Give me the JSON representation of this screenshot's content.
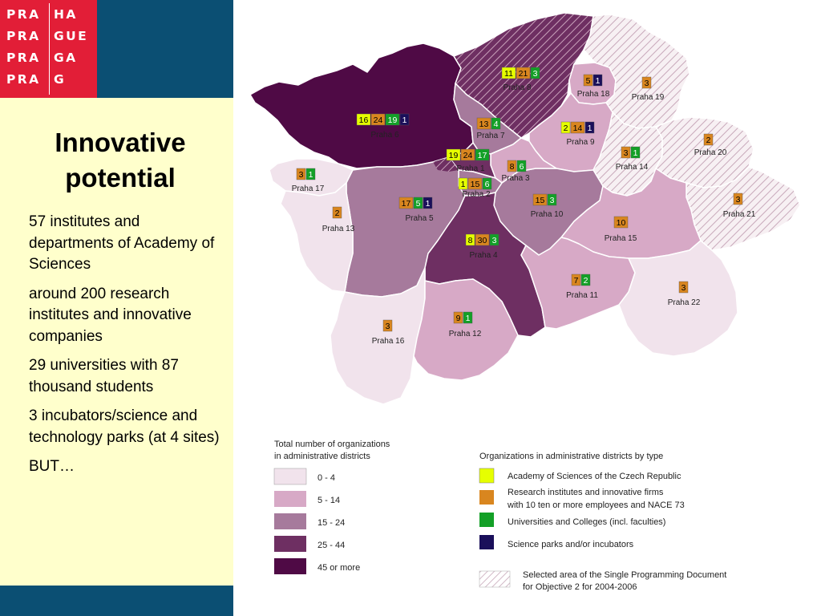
{
  "logo": {
    "lines": [
      "PRA|HA",
      "PRA|GUE",
      "PRA|GA",
      "PRA|G"
    ],
    "col1": [
      "PRA",
      "PRA",
      "PRA",
      "PRA"
    ],
    "col2": [
      "HA",
      "GUE",
      "GA",
      "G"
    ]
  },
  "sidebar": {
    "title_line1": "Innovative",
    "title_line2": "potential",
    "bullets": [
      "57 institutes and departments of Academy of Sciences",
      "around 200 research institutes and innovative companies",
      "29 universities with 87 thousand students",
      "3 incubators/science and technology parks (at 4 sites)",
      "BUT…"
    ]
  },
  "colors": {
    "class_0_4": "#f1e3ec",
    "class_5_14": "#d7a9c6",
    "class_15_24": "#a67a9c",
    "class_25_44": "#6e2f62",
    "class_45_plus": "#4f0a45",
    "academy": "#e6ff00",
    "research": "#d9861f",
    "universities": "#13a027",
    "parks": "#1a0f5a",
    "hatch": "#bfa2b2"
  },
  "districts": [
    {
      "name": "Praha 1",
      "counts": [
        19,
        24,
        17
      ]
    },
    {
      "name": "Praha 2",
      "counts": [
        1,
        15,
        6
      ]
    },
    {
      "name": "Praha 3",
      "counts": [
        8,
        6
      ]
    },
    {
      "name": "Praha 4",
      "counts": [
        8,
        30,
        3
      ]
    },
    {
      "name": "Praha 5",
      "counts": [
        17,
        5,
        1
      ]
    },
    {
      "name": "Praha 6",
      "counts": [
        16,
        24,
        19,
        1
      ]
    },
    {
      "name": "Praha 7",
      "counts": [
        13,
        4
      ]
    },
    {
      "name": "Praha 8",
      "counts": [
        11,
        21,
        3
      ]
    },
    {
      "name": "Praha 9",
      "counts": [
        2,
        14,
        1
      ]
    },
    {
      "name": "Praha 10",
      "counts": [
        15,
        3
      ]
    },
    {
      "name": "Praha 11",
      "counts": [
        7,
        2
      ]
    },
    {
      "name": "Praha 12",
      "counts": [
        9,
        1
      ]
    },
    {
      "name": "Praha 13",
      "counts": [
        2
      ]
    },
    {
      "name": "Praha 14",
      "counts": [
        3,
        1
      ]
    },
    {
      "name": "Praha 15",
      "counts": [
        10
      ]
    },
    {
      "name": "Praha 16",
      "counts": [
        3
      ]
    },
    {
      "name": "Praha 17",
      "counts": [
        3,
        1
      ]
    },
    {
      "name": "Praha 18",
      "counts": [
        5,
        1
      ]
    },
    {
      "name": "Praha 19",
      "counts": [
        3
      ]
    },
    {
      "name": "Praha 20",
      "counts": [
        2
      ]
    },
    {
      "name": "Praha 21",
      "counts": [
        3
      ]
    },
    {
      "name": "Praha 22",
      "counts": [
        3
      ]
    }
  ],
  "legend": {
    "total_title_line1": "Total number of organizations",
    "total_title_line2": "in administrative districts",
    "total_classes": [
      "0 - 4",
      "5 - 14",
      "15 - 24",
      "25 - 44",
      "45 or more"
    ],
    "type_title": "Organizations in administrative districts by type",
    "types": [
      "Academy of Sciences of the Czech Republic",
      "Research institutes and innovative firms",
      "with 10 ten or more employees and NACE 73",
      "Universities and Colleges (incl. faculties)",
      "Science parks and/or incubators"
    ],
    "hatch_line1": "Selected area of the Single Programming Document",
    "hatch_line2": "for Objective 2 for 2004-2006"
  }
}
